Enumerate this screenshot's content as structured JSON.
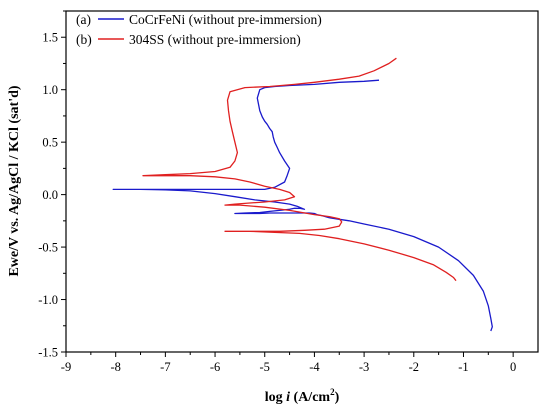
{
  "chart_data": {
    "type": "line",
    "title": "",
    "xlabel_text": "log ",
    "xlabel_var": "i",
    "xlabel_unit": " (A/cm",
    "xlabel_sup": "2",
    "xlabel_close": ")",
    "ylabel": "Ewe/V vs. Ag/AgCl / KCl (sat'd)",
    "xlim": [
      -9,
      0.5
    ],
    "ylim": [
      -1.5,
      1.75
    ],
    "x_ticks": [
      -9,
      -8,
      -7,
      -6,
      -5,
      -4,
      -3,
      -2,
      -1,
      0
    ],
    "y_ticks": [
      -1.5,
      -1.0,
      -0.5,
      0.0,
      0.5,
      1.0,
      1.5
    ],
    "x_tick_labels": [
      "-9",
      "-8",
      "-7",
      "-6",
      "-5",
      "-4",
      "-3",
      "-2",
      "-1",
      "0"
    ],
    "y_tick_labels": [
      "-1.5",
      "-1.0",
      "-0.5",
      "0.0",
      "0.5",
      "1.0",
      "1.5"
    ],
    "grid": false,
    "legend_position": "top-left",
    "series": [
      {
        "name": "CoCrFeNi (without pre-immersion)",
        "tag": "(a)",
        "color": "#1a1acc",
        "x": [
          -0.45,
          -0.42,
          -0.45,
          -0.5,
          -0.6,
          -0.8,
          -1.1,
          -1.5,
          -2.0,
          -2.5,
          -3.0,
          -3.3,
          -3.5,
          -3.7,
          -3.85,
          -3.95,
          -4.0,
          -4.1,
          -4.25,
          -4.4,
          -4.6,
          -4.9,
          -5.1,
          -5.4,
          -5.6,
          -5.4,
          -5.1,
          -4.9,
          -4.7,
          -4.5,
          -4.4,
          -4.3,
          -4.2,
          -4.35,
          -4.5,
          -4.8,
          -5.2,
          -5.6,
          -6.0,
          -6.5,
          -7.0,
          -7.5,
          -8.05,
          -7.5,
          -6.5,
          -5.5,
          -5.0,
          -4.8,
          -4.6,
          -4.55,
          -4.5,
          -4.6,
          -4.7,
          -4.75,
          -4.8,
          -4.83,
          -4.85,
          -4.9,
          -4.95,
          -5.0,
          -5.05,
          -5.1,
          -5.15,
          -5.1,
          -5.0,
          -4.8,
          -4.5,
          -4.0,
          -3.5,
          -3.0,
          -2.7
        ],
        "y": [
          -1.3,
          -1.26,
          -1.18,
          -1.06,
          -0.92,
          -0.77,
          -0.63,
          -0.5,
          -0.4,
          -0.33,
          -0.28,
          -0.25,
          -0.235,
          -0.22,
          -0.2,
          -0.19,
          -0.18,
          -0.175,
          -0.175,
          -0.175,
          -0.175,
          -0.175,
          -0.18,
          -0.18,
          -0.18,
          -0.175,
          -0.17,
          -0.16,
          -0.15,
          -0.14,
          -0.13,
          -0.13,
          -0.14,
          -0.11,
          -0.09,
          -0.07,
          -0.05,
          -0.02,
          0.01,
          0.035,
          0.045,
          0.05,
          0.05,
          0.05,
          0.05,
          0.05,
          0.05,
          0.07,
          0.12,
          0.18,
          0.25,
          0.32,
          0.4,
          0.45,
          0.5,
          0.55,
          0.6,
          0.63,
          0.67,
          0.7,
          0.74,
          0.8,
          0.92,
          1.0,
          1.02,
          1.03,
          1.04,
          1.05,
          1.07,
          1.08,
          1.09
        ]
      },
      {
        "name": "304SS (without pre-immersion)",
        "tag": "(b)",
        "color": "#e02020",
        "x": [
          -2.35,
          -2.5,
          -2.8,
          -3.1,
          -3.5,
          -4.0,
          -4.4,
          -4.9,
          -5.4,
          -5.7,
          -5.75,
          -5.73,
          -5.7,
          -5.65,
          -5.6,
          -5.55,
          -5.6,
          -5.7,
          -6.0,
          -6.5,
          -7.0,
          -7.45,
          -7.0,
          -6.5,
          -6.0,
          -5.6,
          -5.3,
          -5.0,
          -4.7,
          -4.5,
          -4.4,
          -4.6,
          -5.0,
          -5.3,
          -5.6,
          -5.8,
          -5.5,
          -5.0,
          -4.5,
          -4.0,
          -3.7,
          -3.5,
          -3.45,
          -3.5,
          -3.8,
          -4.2,
          -4.7,
          -5.2,
          -5.5,
          -5.8,
          -5.3,
          -4.8,
          -4.3,
          -3.9,
          -3.5,
          -3.0,
          -2.5,
          -2.0,
          -1.6,
          -1.35,
          -1.2,
          -1.15
        ],
        "y": [
          1.3,
          1.25,
          1.18,
          1.13,
          1.1,
          1.07,
          1.05,
          1.03,
          1.02,
          0.98,
          0.9,
          0.8,
          0.7,
          0.6,
          0.5,
          0.4,
          0.32,
          0.26,
          0.22,
          0.2,
          0.19,
          0.18,
          0.18,
          0.18,
          0.17,
          0.15,
          0.12,
          0.08,
          0.05,
          0.02,
          -0.02,
          -0.05,
          -0.07,
          -0.08,
          -0.09,
          -0.1,
          -0.1,
          -0.12,
          -0.15,
          -0.19,
          -0.21,
          -0.23,
          -0.26,
          -0.3,
          -0.33,
          -0.34,
          -0.35,
          -0.35,
          -0.35,
          -0.35,
          -0.35,
          -0.36,
          -0.37,
          -0.39,
          -0.42,
          -0.47,
          -0.53,
          -0.6,
          -0.67,
          -0.74,
          -0.79,
          -0.82
        ]
      }
    ]
  }
}
